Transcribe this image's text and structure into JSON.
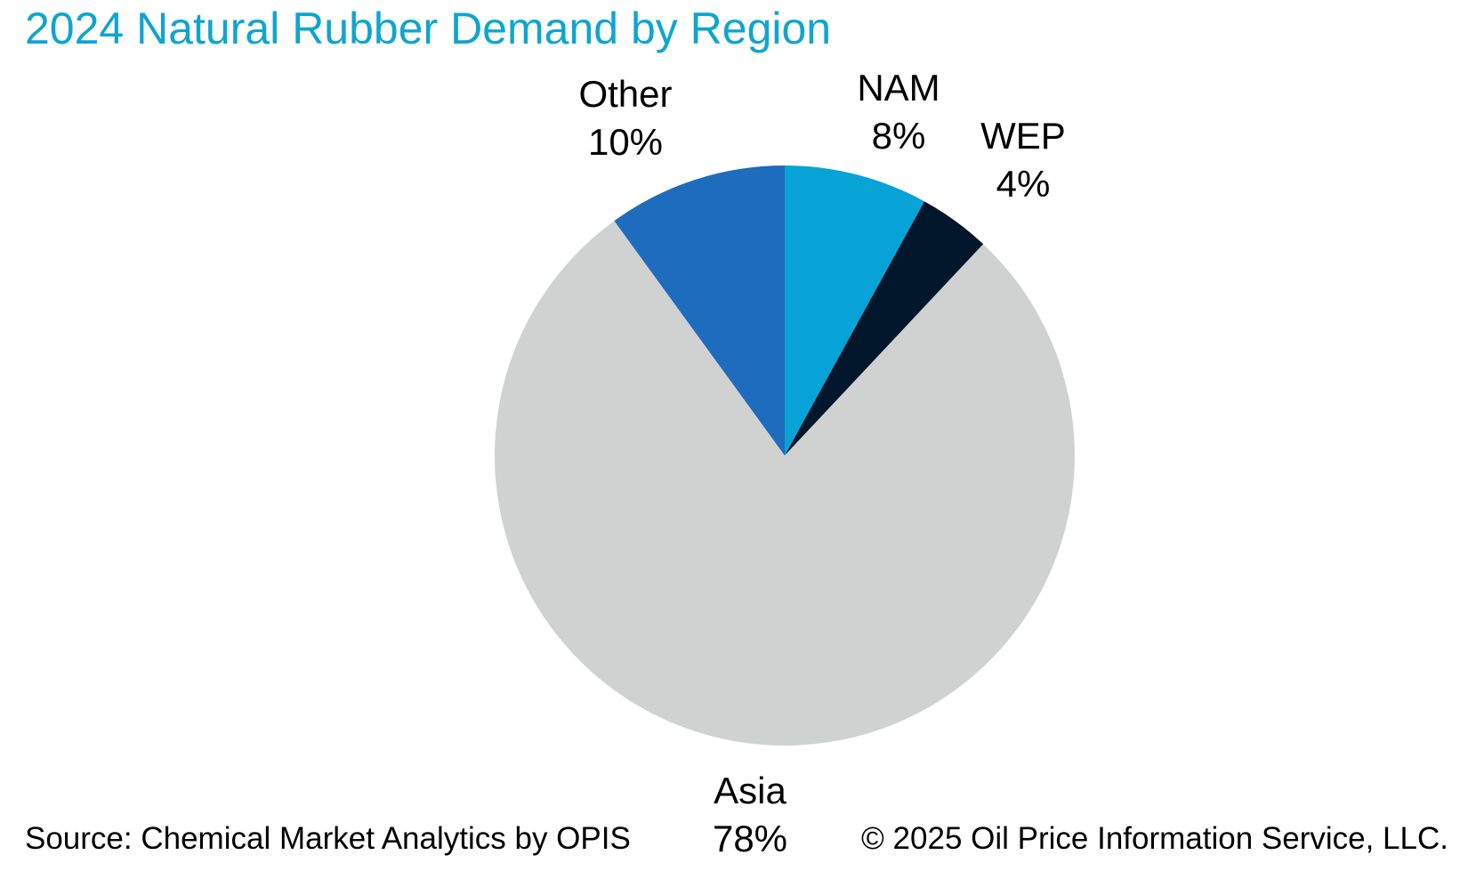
{
  "chart_data": {
    "type": "pie",
    "title": "2024 Natural Rubber Demand by Region",
    "slices": [
      {
        "label": "NAM",
        "value": 8,
        "value_label": "8%",
        "color": "#07a3d6"
      },
      {
        "label": "WEP",
        "value": 4,
        "value_label": "4%",
        "color": "#02172b"
      },
      {
        "label": "Asia",
        "value": 78,
        "value_label": "78%",
        "color": "#d0d2d1"
      },
      {
        "label": "Other",
        "value": 10,
        "value_label": "10%",
        "color": "#1e6cbd"
      }
    ],
    "start_angle": "12 o'clock",
    "direction": "clockwise"
  },
  "footer": {
    "source": "Source: Chemical Market Analytics by OPIS",
    "copyright": "© 2025 Oil Price Information Service, LLC."
  }
}
